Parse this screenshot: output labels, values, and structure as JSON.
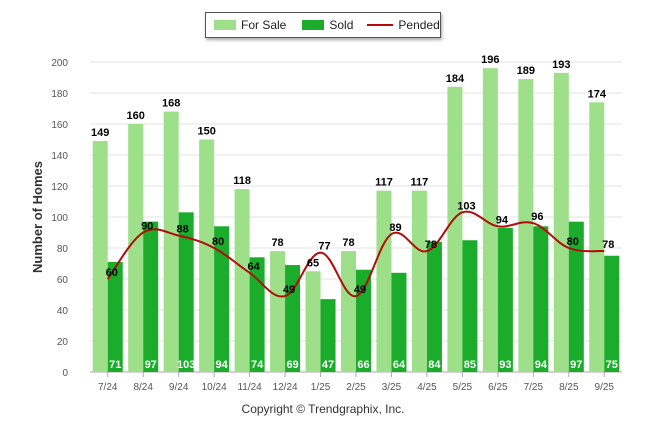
{
  "chart_data": {
    "type": "bar",
    "title": "",
    "xlabel": "",
    "ylabel": "Number of Homes",
    "ylim": [
      0,
      200
    ],
    "yticks": [
      "0",
      "20",
      "40",
      "60",
      "80",
      "100",
      "120",
      "140",
      "160",
      "180",
      "200"
    ],
    "categories": [
      "7/24",
      "8/24",
      "9/24",
      "10/24",
      "11/24",
      "12/24",
      "1/25",
      "2/25",
      "3/25",
      "4/25",
      "5/25",
      "6/25",
      "7/25",
      "8/25",
      "9/25"
    ],
    "series": [
      {
        "name": "For Sale",
        "kind": "bar",
        "color": "#9ee08a",
        "label_color": "#000000",
        "values": [
          149,
          160,
          168,
          150,
          118,
          78,
          65,
          78,
          117,
          117,
          184,
          196,
          189,
          193,
          174
        ]
      },
      {
        "name": "Sold",
        "kind": "bar",
        "color": "#1aac2a",
        "label_color": "#ffffff",
        "values": [
          71,
          97,
          103,
          94,
          74,
          69,
          47,
          66,
          64,
          84,
          85,
          93,
          94,
          97,
          75
        ]
      },
      {
        "name": "Pended",
        "kind": "line",
        "color": "#b50a0a",
        "label_color": "#000000",
        "values": [
          60,
          90,
          88,
          80,
          64,
          49,
          77,
          49,
          89,
          78,
          103,
          94,
          96,
          80,
          78
        ]
      }
    ],
    "legend_position": "top-center"
  },
  "copyright": "Copyright © Trendgraphix, Inc."
}
